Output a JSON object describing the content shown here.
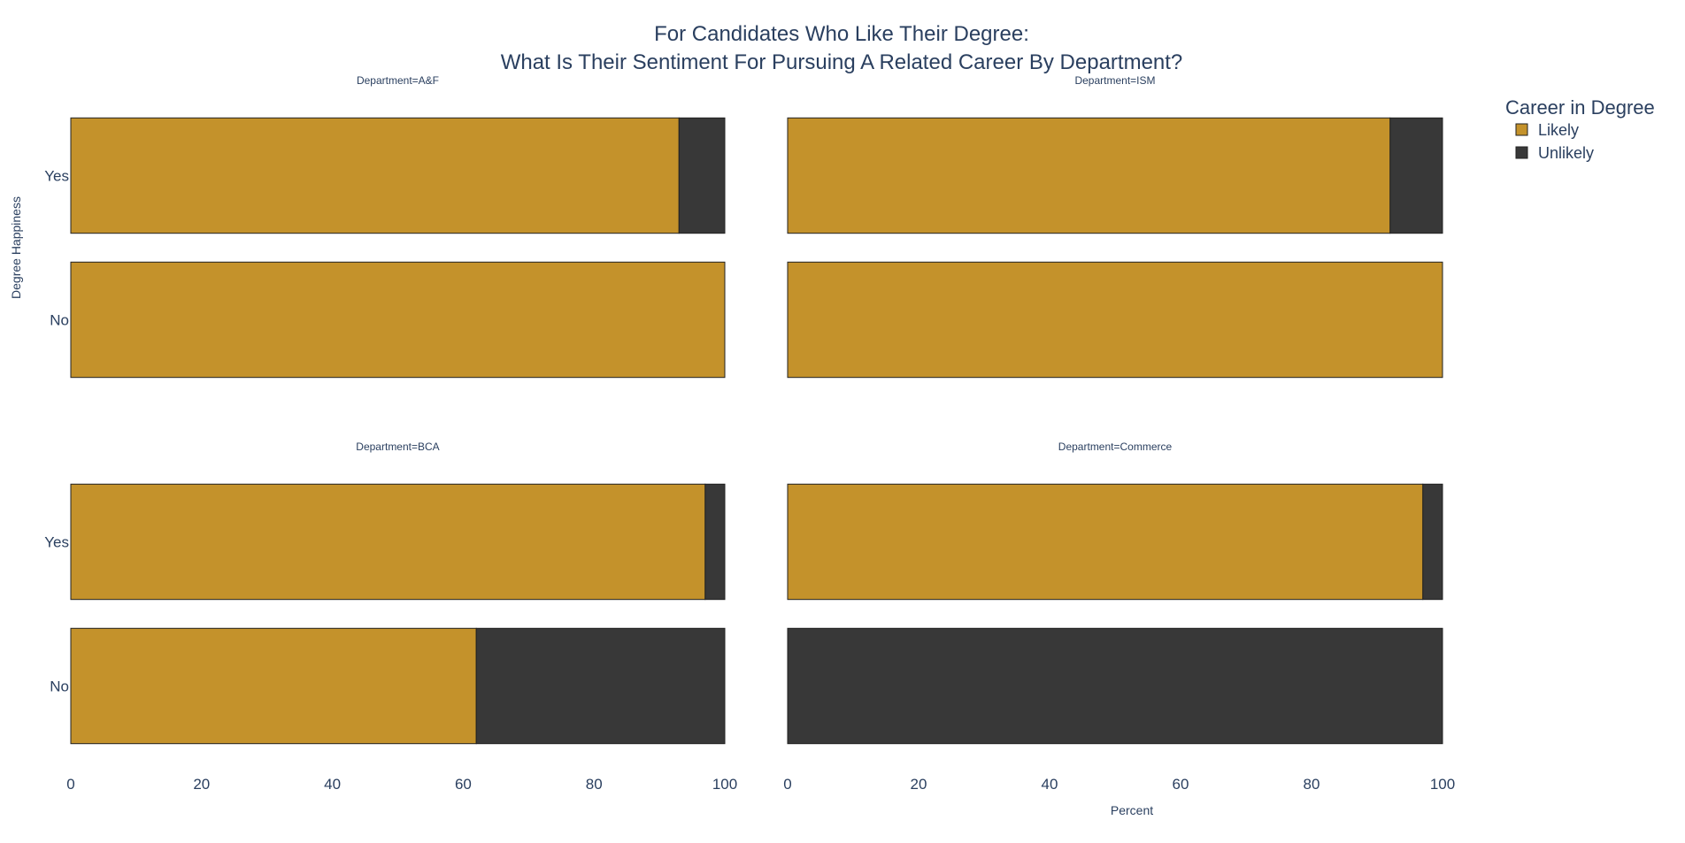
{
  "chart_data": {
    "type": "bar",
    "orientation": "horizontal",
    "barmode": "stack",
    "title_lines": [
      "For Candidates Who Like Their Degree:",
      "What Is Their Sentiment For Pursuing A Related Career By Department?"
    ],
    "xlabel": "Percent",
    "ylabel": "Degree Happiness",
    "xlim": [
      0,
      100
    ],
    "x_ticks": [
      "0",
      "20",
      "40",
      "60",
      "80",
      "100"
    ],
    "categories": [
      "Yes",
      "No"
    ],
    "grid": false,
    "legend": {
      "title": "Career in Degree",
      "placement": "top-right",
      "items": [
        {
          "name": "Likely",
          "color": "#c4922b"
        },
        {
          "name": "Unlikely",
          "color": "#383838"
        }
      ]
    },
    "facets": [
      {
        "title": "Department=A&F",
        "series": [
          {
            "name": "Likely",
            "values": [
              93,
              100
            ]
          },
          {
            "name": "Unlikely",
            "values": [
              7,
              0
            ]
          }
        ]
      },
      {
        "title": "Department=ISM",
        "series": [
          {
            "name": "Likely",
            "values": [
              92,
              100
            ]
          },
          {
            "name": "Unlikely",
            "values": [
              8,
              0
            ]
          }
        ]
      },
      {
        "title": "Department=BCA",
        "series": [
          {
            "name": "Likely",
            "values": [
              97,
              62
            ]
          },
          {
            "name": "Unlikely",
            "values": [
              3,
              38
            ]
          }
        ]
      },
      {
        "title": "Department=Commerce",
        "series": [
          {
            "name": "Likely",
            "values": [
              97,
              0
            ]
          },
          {
            "name": "Unlikely",
            "values": [
              3,
              100
            ]
          }
        ]
      }
    ]
  }
}
